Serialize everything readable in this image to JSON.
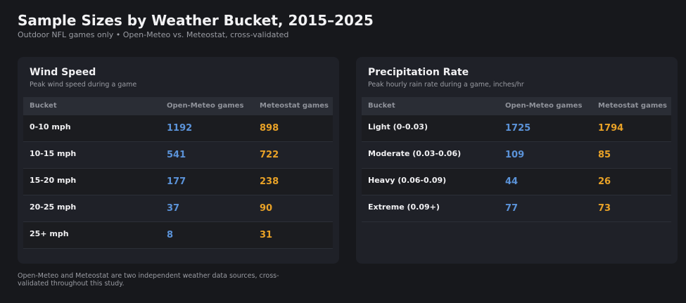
{
  "header": {
    "title": "Sample Sizes by Weather Bucket, 2015–2025",
    "subtitle": "Outdoor NFL games only  •  Open-Meteo vs. Meteostat, cross-validated"
  },
  "panels": [
    {
      "title": "Wind Speed",
      "subtitle": "Peak wind speed during a game",
      "columns": [
        "Bucket",
        "Open-Meteo games",
        "Meteostat games"
      ],
      "rows": [
        [
          "0-10 mph",
          1192,
          898
        ],
        [
          "10-15 mph",
          541,
          722
        ],
        [
          "15-20 mph",
          177,
          238
        ],
        [
          "20-25 mph",
          37,
          90
        ],
        [
          "25+ mph",
          8,
          31
        ]
      ]
    },
    {
      "title": "Precipitation Rate",
      "subtitle": "Peak hourly rain rate during a game, inches/hr",
      "columns": [
        "Bucket",
        "Open-Meteo games",
        "Meteostat games"
      ],
      "rows": [
        [
          "Light (0-0.03)",
          1725,
          1794
        ],
        [
          "Moderate (0.03-0.06)",
          109,
          85
        ],
        [
          "Heavy (0.06-0.09)",
          44,
          26
        ],
        [
          "Extreme (0.09+)",
          77,
          73
        ]
      ]
    }
  ],
  "footnote": "Open-Meteo and Meteostat are two independent weather data sources, cross-validated throughout this study."
}
